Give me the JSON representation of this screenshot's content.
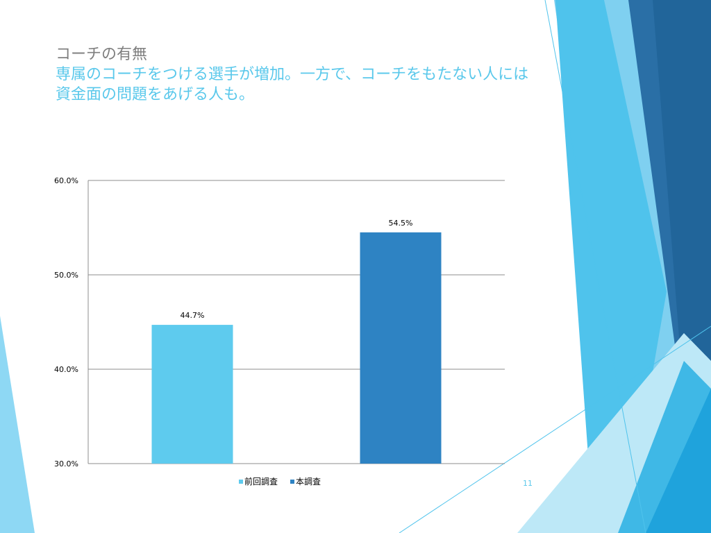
{
  "slide": {
    "title": "コーチの有無",
    "subtitle": "専属のコーチをつける選手が増加。一方で、コーチをもたない人には資金面の問題をあげる人も。",
    "page_number": "11"
  },
  "colors": {
    "series_previous": "#5ecbee",
    "series_current": "#2e83c3",
    "title_gray": "#7f7f7f",
    "title_accent": "#5ac8eb",
    "gridline": "#8c8c8c"
  },
  "chart_data": {
    "type": "bar",
    "categories": [
      "前回調査",
      "本調査"
    ],
    "values": [
      44.7,
      54.5
    ],
    "value_labels": [
      "44.7%",
      "54.5%"
    ],
    "colors": [
      "#5ecbee",
      "#2e83c3"
    ],
    "ylim": [
      30,
      60
    ],
    "yticks": [
      30,
      40,
      50,
      60
    ],
    "ytick_labels": [
      "30.0%",
      "40.0%",
      "50.0%",
      "60.0%"
    ],
    "grid": true,
    "legend_position": "bottom",
    "legend": [
      "前回調査",
      "本調査"
    ]
  }
}
